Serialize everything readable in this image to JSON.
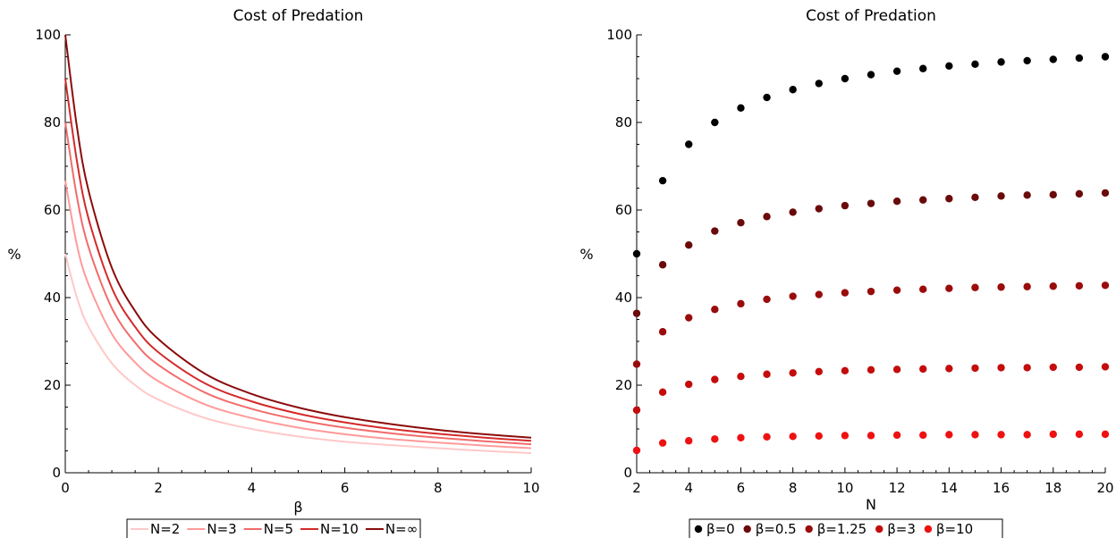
{
  "chart_data": [
    {
      "type": "line",
      "title": "Cost of Predation",
      "xlabel": "β",
      "ylabel": "%",
      "xlim": [
        0,
        10
      ],
      "ylim": [
        0,
        100
      ],
      "xticks": [
        "0",
        "2",
        "4",
        "6",
        "8",
        "10"
      ],
      "yticks": [
        "0",
        "20",
        "40",
        "60",
        "80",
        "100"
      ],
      "grid": false,
      "legend_position": "bottom",
      "series": [
        {
          "name": "N=2",
          "color": "#ffc8c8",
          "x": [
            0,
            0.25,
            0.5,
            1,
            1.5,
            2,
            3,
            4,
            5,
            6,
            7,
            8,
            9,
            10
          ],
          "values": [
            50,
            40,
            33.3,
            25,
            20,
            16.7,
            12.5,
            10,
            8.3,
            7.1,
            6.3,
            5.6,
            5,
            4.5
          ]
        },
        {
          "name": "N=3",
          "color": "#ff9a9a",
          "x": [
            0,
            0.25,
            0.5,
            1,
            1.5,
            2,
            3,
            4,
            5,
            6,
            7,
            8,
            9,
            10
          ],
          "values": [
            66.7,
            52,
            43,
            31.7,
            25.2,
            20.9,
            15.6,
            12.5,
            10.3,
            8.8,
            7.7,
            6.9,
            6.2,
            5.6
          ]
        },
        {
          "name": "N=5",
          "color": "#f26b6b",
          "x": [
            0,
            0.25,
            0.5,
            1,
            1.5,
            2,
            3,
            4,
            5,
            6,
            7,
            8,
            9,
            10
          ],
          "values": [
            80,
            63,
            51.5,
            37.6,
            29.7,
            24.6,
            18.3,
            14.6,
            12.1,
            10.3,
            9,
            8,
            7.2,
            6.5
          ]
        },
        {
          "name": "N=10",
          "color": "#d42a2a",
          "x": [
            0,
            0.25,
            0.5,
            1,
            1.5,
            2,
            3,
            4,
            5,
            6,
            7,
            8,
            9,
            10
          ],
          "values": [
            90,
            71.2,
            58,
            42.2,
            33.3,
            27.5,
            20.4,
            16.3,
            13.5,
            11.5,
            10,
            8.9,
            8,
            7.3
          ]
        },
        {
          "name": "N=∞",
          "color": "#8b0b0b",
          "x": [
            0,
            0.25,
            0.5,
            1,
            1.5,
            2,
            3,
            4,
            5,
            6,
            7,
            8,
            9,
            10
          ],
          "values": [
            100,
            79,
            64.4,
            46.8,
            36.9,
            30.5,
            22.6,
            18,
            14.9,
            12.7,
            11.1,
            9.8,
            8.8,
            8
          ]
        }
      ]
    },
    {
      "type": "scatter",
      "title": "Cost of Predation",
      "xlabel": "N",
      "ylabel": "%",
      "xlim": [
        2,
        20
      ],
      "ylim": [
        0,
        100
      ],
      "xticks": [
        "2",
        "4",
        "6",
        "8",
        "10",
        "12",
        "14",
        "16",
        "18",
        "20"
      ],
      "yticks": [
        "0",
        "20",
        "40",
        "60",
        "80",
        "100"
      ],
      "grid": false,
      "legend_position": "bottom",
      "x": [
        2,
        3,
        4,
        5,
        6,
        7,
        8,
        9,
        10,
        11,
        12,
        13,
        14,
        15,
        16,
        17,
        18,
        19,
        20
      ],
      "series": [
        {
          "name": "β=0",
          "color": "#000000",
          "values": [
            50,
            66.7,
            75,
            80,
            83.3,
            85.7,
            87.5,
            88.9,
            90,
            90.9,
            91.7,
            92.3,
            92.9,
            93.3,
            93.8,
            94.1,
            94.4,
            94.7,
            95
          ]
        },
        {
          "name": "β=0.5",
          "color": "#6a0a0a",
          "values": [
            36.4,
            47.5,
            52,
            55.2,
            57.1,
            58.5,
            59.5,
            60.3,
            61,
            61.5,
            62,
            62.3,
            62.6,
            62.9,
            63.2,
            63.4,
            63.5,
            63.7,
            63.9
          ]
        },
        {
          "name": "β=1.25",
          "color": "#9a0c0c",
          "values": [
            24.8,
            32.2,
            35.4,
            37.3,
            38.6,
            39.6,
            40.3,
            40.7,
            41.1,
            41.4,
            41.7,
            41.9,
            42.1,
            42.3,
            42.4,
            42.5,
            42.6,
            42.7,
            42.8
          ]
        },
        {
          "name": "β=3",
          "color": "#c40c0c",
          "values": [
            14.3,
            18.4,
            20.2,
            21.3,
            22,
            22.5,
            22.8,
            23.1,
            23.3,
            23.5,
            23.6,
            23.7,
            23.8,
            23.9,
            24,
            24,
            24.1,
            24.1,
            24.2
          ]
        },
        {
          "name": "β=10",
          "color": "#ee1111",
          "values": [
            5.1,
            6.8,
            7.3,
            7.7,
            8,
            8.2,
            8.3,
            8.4,
            8.5,
            8.5,
            8.6,
            8.6,
            8.7,
            8.7,
            8.7,
            8.7,
            8.8,
            8.8,
            8.8
          ]
        }
      ]
    }
  ]
}
